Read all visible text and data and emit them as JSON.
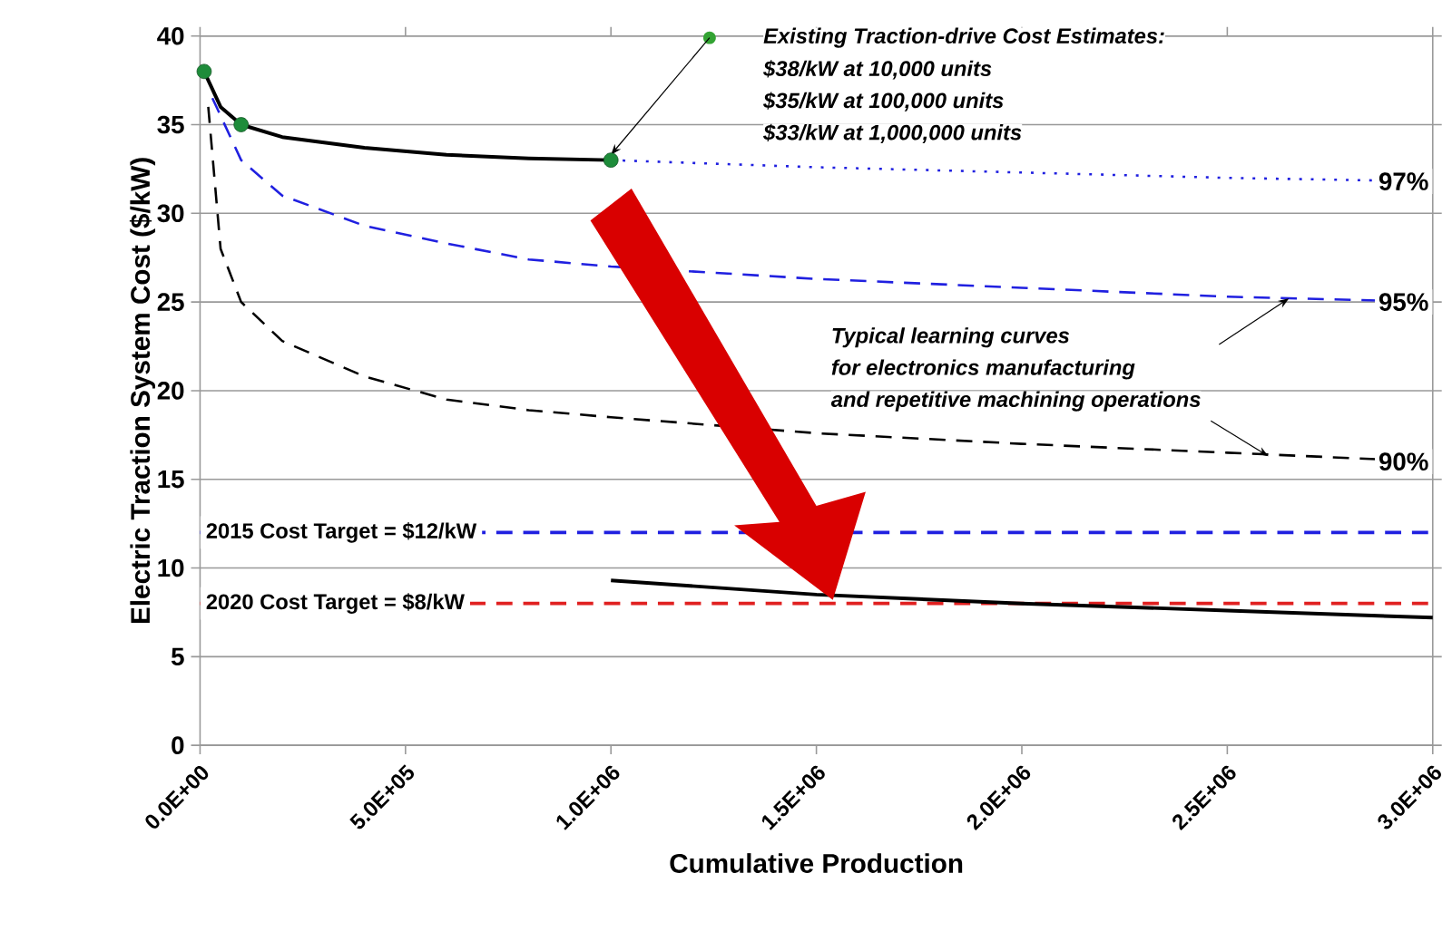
{
  "chart_data": {
    "type": "line",
    "xlabel": "Cumulative Production",
    "ylabel": "Electric Traction System Cost ($/kW)",
    "xlim": [
      0,
      3000000
    ],
    "ylim": [
      0,
      40
    ],
    "xticks": [
      {
        "value": 0,
        "label": "0.0E+00"
      },
      {
        "value": 500000,
        "label": "5.0E+05"
      },
      {
        "value": 1000000,
        "label": "1.0E+06"
      },
      {
        "value": 1500000,
        "label": "1.5E+06"
      },
      {
        "value": 2000000,
        "label": "2.0E+06"
      },
      {
        "value": 2500000,
        "label": "2.5E+06"
      },
      {
        "value": 3000000,
        "label": "3.0E+06"
      }
    ],
    "yticks": [
      0,
      5,
      10,
      15,
      20,
      25,
      30,
      35,
      40
    ],
    "grid": "y",
    "series": [
      {
        "color": "#000000",
        "line_style": "solid",
        "x": [
          10000,
          50000,
          100000,
          200000,
          400000,
          600000,
          800000,
          1000000
        ],
        "values": [
          38,
          36,
          35,
          34.3,
          33.7,
          33.3,
          33.1,
          33
        ]
      },
      {
        "type": "scatter",
        "marker": "circle",
        "color": "#1e8c3a",
        "x": [
          10000,
          100000,
          1000000
        ],
        "values": [
          38,
          35,
          33
        ]
      },
      {
        "name": "97%",
        "color": "#2020e0",
        "line_style": "dotted",
        "x": [
          1000000,
          1500000,
          2000000,
          2500000,
          3000000
        ],
        "values": [
          33,
          32.6,
          32.3,
          32,
          31.8
        ]
      },
      {
        "name": "95%",
        "color": "#2020e0",
        "line_style": "dashed",
        "x": [
          30000,
          100000,
          200000,
          400000,
          600000,
          800000,
          1000000,
          1500000,
          2000000,
          2500000,
          3000000
        ],
        "values": [
          36.5,
          33,
          31,
          29.3,
          28.3,
          27.4,
          27,
          26.3,
          25.8,
          25.3,
          25
        ]
      },
      {
        "name": "90%",
        "color": "#000000",
        "line_style": "dashed",
        "x": [
          20000,
          50000,
          100000,
          200000,
          400000,
          600000,
          800000,
          1000000,
          1500000,
          2000000,
          2500000,
          3000000
        ],
        "values": [
          36,
          28,
          25,
          22.8,
          20.8,
          19.5,
          18.9,
          18.5,
          17.6,
          17,
          16.5,
          16
        ]
      },
      {
        "color": "#000000",
        "line_style": "solid",
        "x": [
          1000000,
          1500000,
          2000000,
          2500000,
          3000000
        ],
        "values": [
          9.3,
          8.5,
          8,
          7.6,
          7.2
        ]
      }
    ],
    "ref_lines": [
      {
        "axis": "y",
        "value": 12,
        "label": "2015 Cost Target = $12/kW",
        "color": "#2020e0",
        "line_style": "dashed"
      },
      {
        "axis": "y",
        "value": 8,
        "label": "2020 Cost Target = $8/kW",
        "color": "#e02020",
        "line_style": "dashed"
      }
    ],
    "annotations": [
      "Existing Traction-drive Cost Estimates:",
      "$38/kW at 10,000 units",
      "$35/kW at 100,000 units",
      "$33/kW at 1,000,000 units",
      "Typical learning curves",
      "for electronics manufacturing",
      {
        "text": "and repetitive machining operations",
        "x": 2600000,
        "y": 16.3
      }
    ]
  }
}
